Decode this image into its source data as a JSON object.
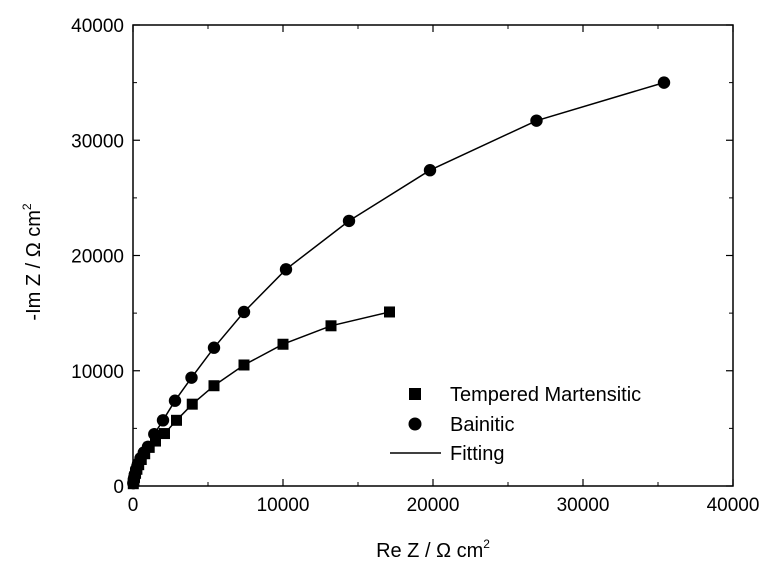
{
  "chart_data": {
    "type": "scatter",
    "title": "",
    "xlabel": {
      "text": "Re Z / Ω cm",
      "sup": "2"
    },
    "ylabel": {
      "text": "-Im Z / Ω cm",
      "sup": "2"
    },
    "xlim": [
      0,
      40000
    ],
    "ylim": [
      0,
      40000
    ],
    "xticks": [
      0,
      10000,
      20000,
      30000,
      40000
    ],
    "yticks": [
      0,
      10000,
      20000,
      30000,
      40000
    ],
    "xtick_labels": [
      "0",
      "10000",
      "20000",
      "30000",
      "40000"
    ],
    "ytick_labels": [
      "0",
      "10000",
      "20000",
      "30000",
      "40000"
    ],
    "grid": false,
    "legend_position": "bottom-right",
    "series": [
      {
        "name": "Tempered Martensitic",
        "marker": "square",
        "fitted": true,
        "x": [
          20,
          50,
          100,
          170,
          260,
          380,
          550,
          780,
          1080,
          1500,
          2100,
          2900,
          3950,
          5400,
          7400,
          10000,
          13200,
          17100
        ],
        "y": [
          200,
          450,
          750,
          1100,
          1450,
          1850,
          2300,
          2800,
          3350,
          3900,
          4550,
          5700,
          7100,
          8700,
          10500,
          12300,
          13900,
          15100
        ]
      },
      {
        "name": "Bainitic",
        "marker": "circle",
        "fitted": true,
        "x": [
          20,
          60,
          120,
          210,
          330,
          500,
          720,
          1000,
          1420,
          2000,
          2800,
          3900,
          5400,
          7400,
          10200,
          14400,
          19800,
          26900,
          35400
        ],
        "y": [
          250,
          600,
          1000,
          1450,
          1900,
          2400,
          2900,
          3400,
          4500,
          5700,
          7400,
          9400,
          12000,
          15100,
          18800,
          23000,
          27400,
          31700,
          35000
        ]
      }
    ],
    "legend": {
      "entries": [
        {
          "label": "Tempered Martensitic",
          "symbol": "square"
        },
        {
          "label": "Bainitic",
          "symbol": "circle"
        },
        {
          "label": "Fitting",
          "symbol": "line"
        }
      ]
    },
    "colors": {
      "marker": "#000000",
      "line": "#000000",
      "axis": "#000000",
      "background": "#ffffff"
    }
  }
}
